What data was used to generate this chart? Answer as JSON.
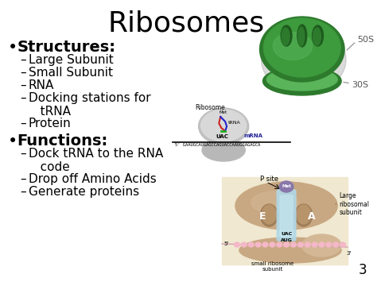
{
  "title": "Ribosomes",
  "title_fontsize": 26,
  "bg_color": "#ffffff",
  "bullet1": "Structures:",
  "bullet1_fontsize": 14,
  "sub1": [
    "Large Subunit",
    "Small Subunit",
    "RNA",
    "Docking stations for\n   tRNA",
    "Protein"
  ],
  "bullet2": "Functions:",
  "bullet2_fontsize": 14,
  "sub2": [
    "Dock tRNA to the RNA\n   code",
    "Drop off Amino Acids",
    "Generate proteins"
  ],
  "sub_fontsize": 11,
  "label_50S": "50S",
  "label_30S": "30S",
  "label_ribosome": "Ribosome",
  "label_mRNA": "mRNA",
  "label_psite": "P site",
  "label_large": "Large\nribosomal\nsubunit",
  "label_small": "small ribosome\nsubunit",
  "label_e": "E",
  "label_a": "A",
  "green_dark": "#2d7a2d",
  "green_mid": "#3d9a3d",
  "green_light": "#5ab55a",
  "green_groove": "#1d5a1d",
  "tan_color": "#c8a882",
  "tan_light": "#d4b896",
  "tan_dark": "#9e7d58",
  "light_blue": "#b0d8e8",
  "light_blue2": "#c8e8f0",
  "pink_color": "#f5b8c8",
  "pink_light": "#fdd0dc",
  "purple_color": "#8877aa",
  "purple_light": "#aa99cc",
  "cream_color": "#f0e8d0",
  "gray_ribo": "#c0c0c0",
  "gray_ribo2": "#d8d8d8"
}
